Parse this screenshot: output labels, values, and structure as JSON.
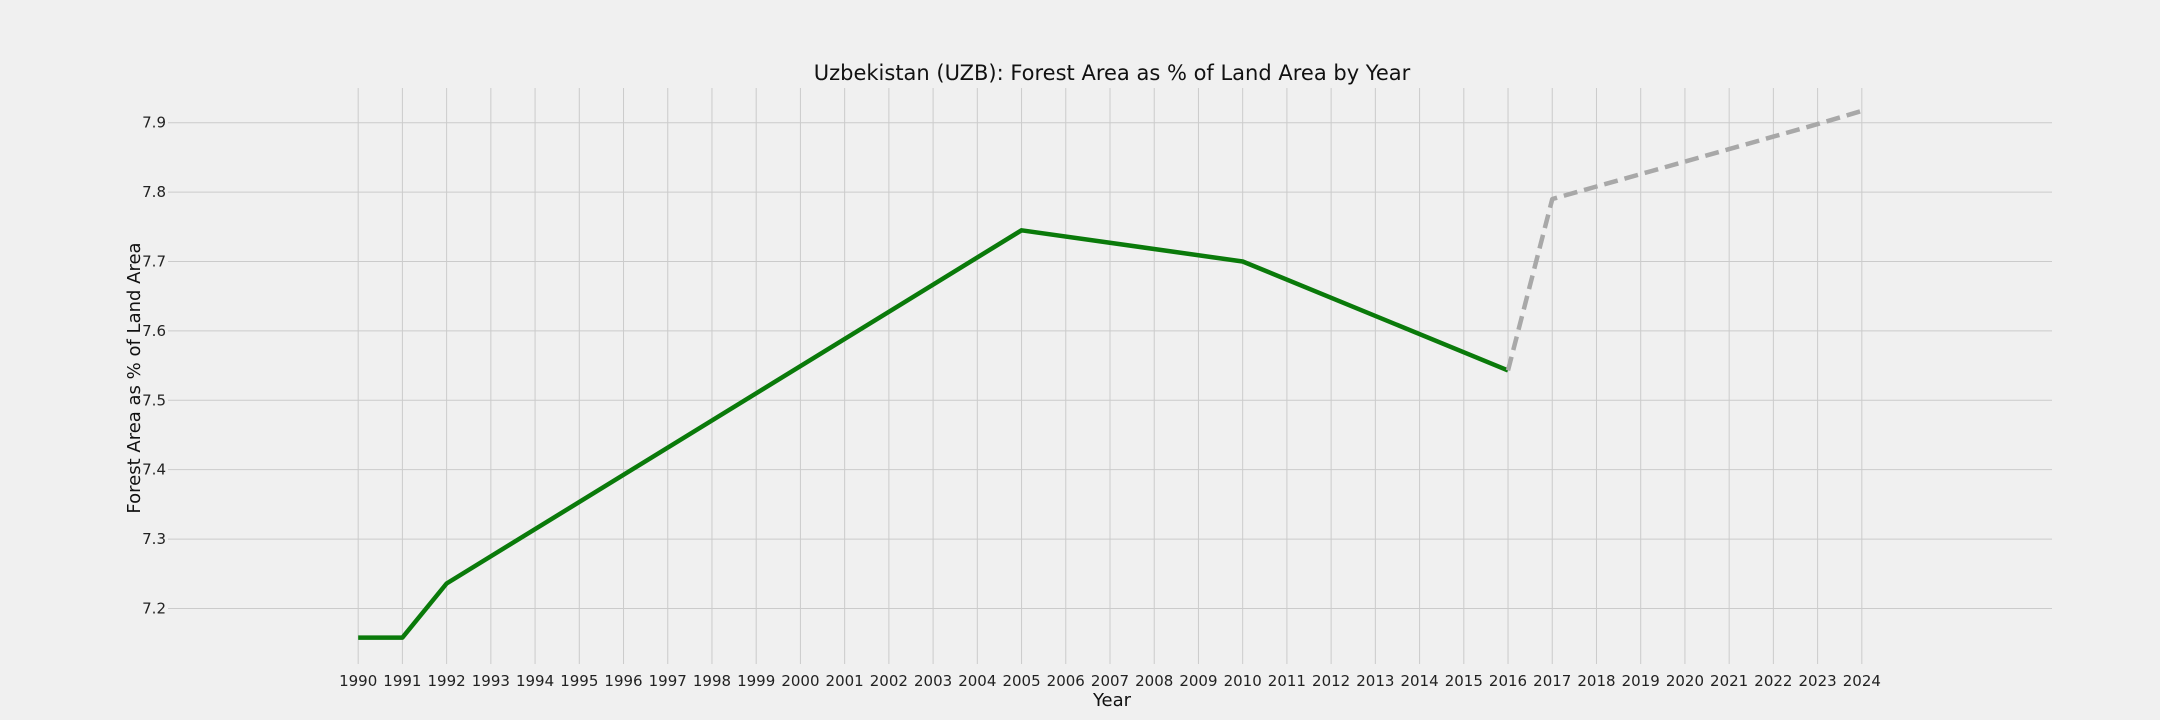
{
  "chart_data": {
    "type": "line",
    "title": "Uzbekistan (UZB): Forest Area as % of Land Area by Year",
    "xlabel": "Year",
    "ylabel": "Forest Area as % of Land Area",
    "xlim": [
      1985.7,
      2028.3
    ],
    "ylim": [
      7.12,
      7.95
    ],
    "x_ticks": [
      1990,
      1991,
      1992,
      1993,
      1994,
      1995,
      1996,
      1997,
      1998,
      1999,
      2000,
      2001,
      2002,
      2003,
      2004,
      2005,
      2006,
      2007,
      2008,
      2009,
      2010,
      2011,
      2012,
      2013,
      2014,
      2015,
      2016,
      2017,
      2018,
      2019,
      2020,
      2021,
      2022,
      2023,
      2024
    ],
    "y_ticks": [
      7.2,
      7.3,
      7.4,
      7.5,
      7.6,
      7.7,
      7.8,
      7.9
    ],
    "grid": true,
    "series": [
      {
        "style": "solid",
        "color": "#0a7a0a",
        "x": [
          1990,
          1991,
          1992,
          2005,
          2010,
          2016
        ],
        "y": [
          7.158,
          7.158,
          7.236,
          7.745,
          7.7,
          7.543
        ]
      },
      {
        "style": "dashed",
        "color": "#a8a8a8",
        "x": [
          2016,
          2017,
          2018,
          2019,
          2020,
          2021,
          2022,
          2023,
          2024
        ],
        "y": [
          7.543,
          7.79,
          7.808,
          7.826,
          7.844,
          7.862,
          7.88,
          7.898,
          7.917
        ]
      }
    ]
  }
}
